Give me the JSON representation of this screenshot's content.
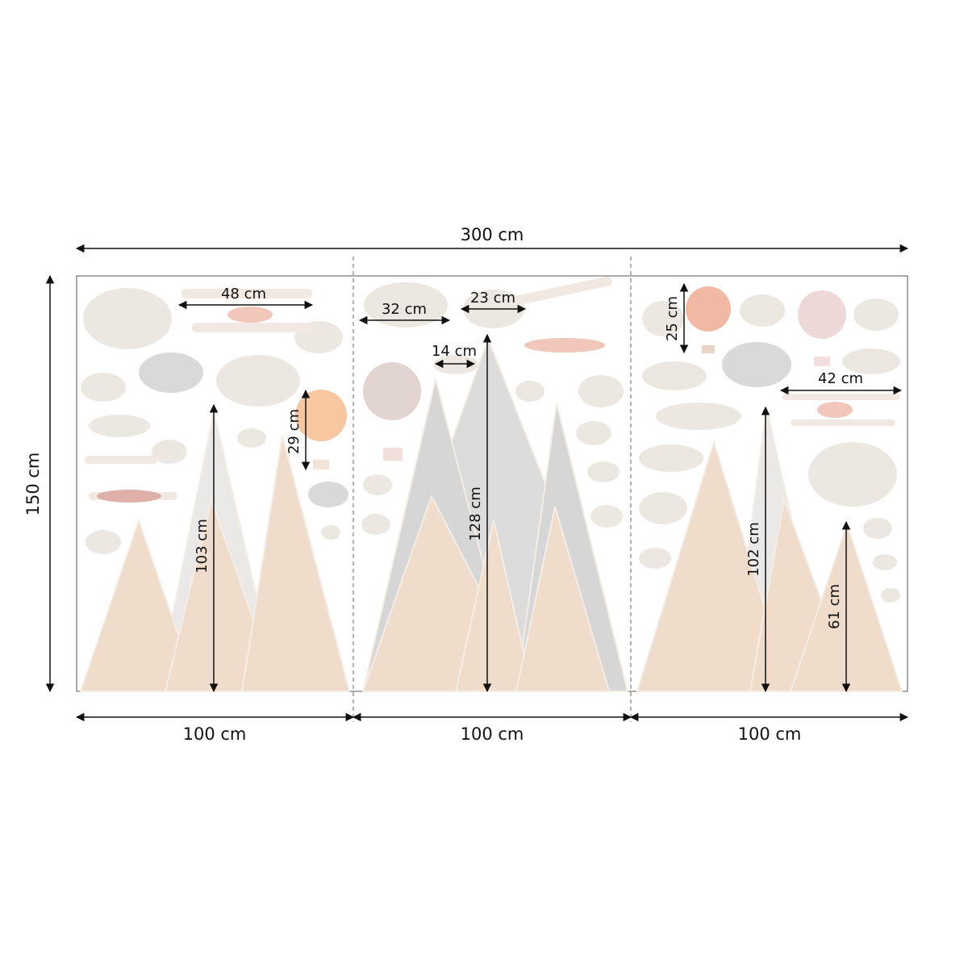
{
  "total_width": "300 cm",
  "total_height": "150 cm",
  "panels": [
    "100 cm",
    "100 cm",
    "100 cm"
  ],
  "dimensions": [
    "48 cm",
    "29 cm",
    "103 cm",
    "32 cm",
    "23 cm",
    "14 cm",
    "128 cm",
    "25 cm",
    "42 cm",
    "102 cm",
    "61 cm"
  ]
}
